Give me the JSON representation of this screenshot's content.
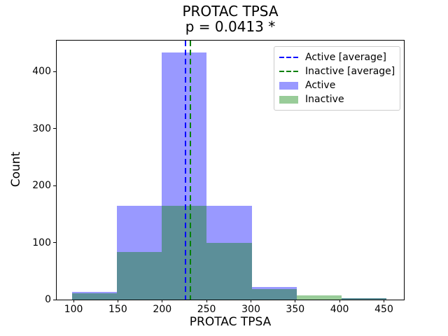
{
  "chart_data": {
    "type": "histogram",
    "title": "PROTAC TPSA",
    "subtitle": "p = 0.0413 *",
    "xlabel": "PROTAC TPSA",
    "ylabel": "Count",
    "x_ticks": [
      100,
      150,
      200,
      250,
      300,
      350,
      400,
      450
    ],
    "y_ticks": [
      0,
      100,
      200,
      300,
      400
    ],
    "xlim": [
      81,
      472.5
    ],
    "ylim": [
      0,
      454
    ],
    "bin_edges": [
      98,
      148.7,
      199.4,
      250.1,
      300.9,
      351.6,
      402.3,
      453
    ],
    "series": [
      {
        "name": "Active",
        "fill_color": "#9999ff",
        "line_color": "#0000ff",
        "counts": [
          14,
          165,
          433,
          165,
          22,
          0,
          2
        ],
        "average": 226.5
      },
      {
        "name": "Inactive",
        "fill_color": "#99cc99",
        "line_color": "#008000",
        "counts": [
          11,
          84,
          165,
          99,
          18,
          7,
          2
        ],
        "average": 231.5
      }
    ],
    "overlap_color": "#5c8f99",
    "axis_color": "#000000",
    "legend": {
      "position": "upper-right",
      "entries": [
        {
          "label": "Active [average]",
          "type": "dashed-line",
          "color": "#0000ff"
        },
        {
          "label": "Inactive [average]",
          "type": "dashed-line",
          "color": "#008000"
        },
        {
          "label": "Active",
          "type": "patch",
          "color": "#9999ff"
        },
        {
          "label": "Inactive",
          "type": "patch",
          "color": "#99cc99"
        }
      ]
    }
  }
}
